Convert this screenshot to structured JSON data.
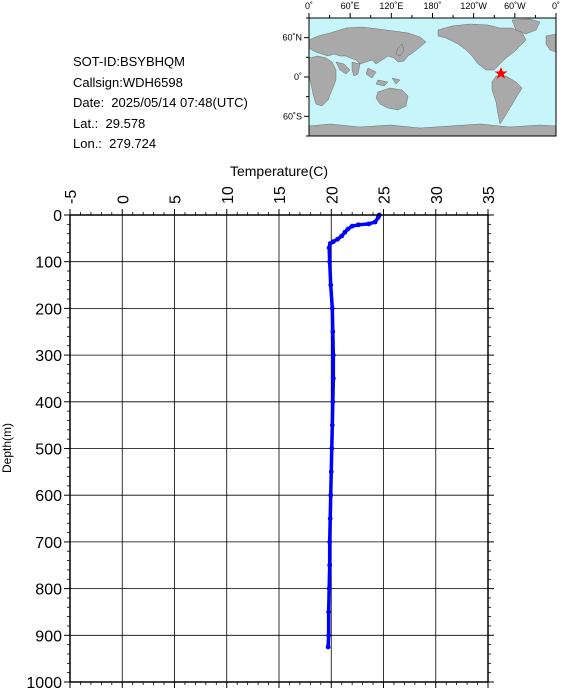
{
  "info": {
    "sot_id": "SOT-ID:BSYBHQM",
    "callsign": "Callsign:WDH6598",
    "date": "Date:  2025/05/14 07:48(UTC)",
    "lat": "Lat.:  29.578",
    "lon": "Lon.:  279.724"
  },
  "map": {
    "top_labels": [
      "0˚",
      "60˚E",
      "120˚E",
      "180˚",
      "120˚W",
      "60˚W",
      "0˚"
    ],
    "left_labels": [
      "60˚N",
      "0˚",
      "60˚S"
    ],
    "ocean_color": "#c8f5fa",
    "land_color": "#a9a9a9",
    "marker_color": "#ff0000"
  },
  "chart_data": {
    "type": "line",
    "xlabel": "Temperature(C)",
    "ylabel": "Depth(m)",
    "xlim": [
      -5,
      35
    ],
    "ylim": [
      1000,
      0
    ],
    "x_ticks": [
      "-5",
      "0",
      "5",
      "10",
      "15",
      "20",
      "25",
      "30",
      "35"
    ],
    "y_ticks": [
      "0",
      "100",
      "200",
      "300",
      "400",
      "500",
      "600",
      "700",
      "800",
      "900",
      "1000"
    ],
    "line_color": "#0000ff",
    "profile": [
      {
        "t": 24.6,
        "d": 0
      },
      {
        "t": 24.5,
        "d": 5
      },
      {
        "t": 24.2,
        "d": 15
      },
      {
        "t": 23.6,
        "d": 19
      },
      {
        "t": 22.6,
        "d": 21
      },
      {
        "t": 22.0,
        "d": 24
      },
      {
        "t": 21.6,
        "d": 30
      },
      {
        "t": 21.3,
        "d": 37
      },
      {
        "t": 21.0,
        "d": 45
      },
      {
        "t": 20.6,
        "d": 52
      },
      {
        "t": 20.2,
        "d": 57
      },
      {
        "t": 19.9,
        "d": 61
      },
      {
        "t": 19.8,
        "d": 70
      },
      {
        "t": 19.85,
        "d": 100
      },
      {
        "t": 19.95,
        "d": 150
      },
      {
        "t": 20.1,
        "d": 200
      },
      {
        "t": 20.15,
        "d": 250
      },
      {
        "t": 20.2,
        "d": 300
      },
      {
        "t": 20.2,
        "d": 350
      },
      {
        "t": 20.15,
        "d": 400
      },
      {
        "t": 20.1,
        "d": 450
      },
      {
        "t": 20.05,
        "d": 500
      },
      {
        "t": 20.0,
        "d": 550
      },
      {
        "t": 19.95,
        "d": 600
      },
      {
        "t": 19.9,
        "d": 650
      },
      {
        "t": 19.85,
        "d": 700
      },
      {
        "t": 19.85,
        "d": 750
      },
      {
        "t": 19.8,
        "d": 800
      },
      {
        "t": 19.75,
        "d": 850
      },
      {
        "t": 19.75,
        "d": 900
      },
      {
        "t": 19.7,
        "d": 925
      }
    ],
    "grid": true
  }
}
